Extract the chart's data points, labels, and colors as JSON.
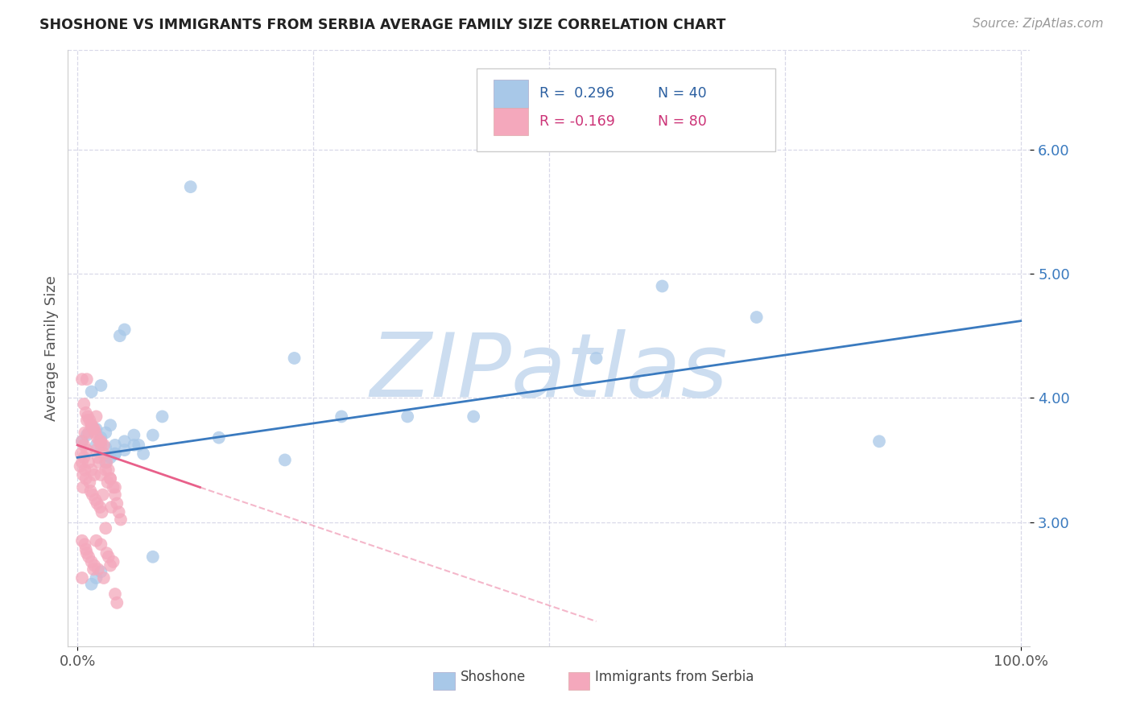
{
  "title": "SHOSHONE VS IMMIGRANTS FROM SERBIA AVERAGE FAMILY SIZE CORRELATION CHART",
  "source": "Source: ZipAtlas.com",
  "ylabel": "Average Family Size",
  "xlim": [
    -0.01,
    1.01
  ],
  "ylim": [
    2.0,
    6.8
  ],
  "yticks": [
    3.0,
    4.0,
    5.0,
    6.0
  ],
  "blue_color": "#a8c8e8",
  "pink_color": "#f4a8bc",
  "blue_line_color": "#3a7abf",
  "pink_line_color": "#e8608a",
  "R_blue": 0.296,
  "N_blue": 40,
  "R_pink": -0.169,
  "N_pink": 80,
  "watermark_text": "ZIPatlas",
  "watermark_color": "#ccddf0",
  "background_color": "#ffffff",
  "grid_color": "#d8d8e8",
  "blue_scatter_x": [
    0.005,
    0.01,
    0.015,
    0.02,
    0.02,
    0.025,
    0.025,
    0.03,
    0.03,
    0.035,
    0.04,
    0.04,
    0.045,
    0.05,
    0.05,
    0.06,
    0.065,
    0.07,
    0.08,
    0.09,
    0.15,
    0.22,
    0.23,
    0.28,
    0.35,
    0.42,
    0.55,
    0.62,
    0.72,
    0.85,
    0.015,
    0.02,
    0.025,
    0.03,
    0.035,
    0.04,
    0.05,
    0.06,
    0.08,
    0.12
  ],
  "blue_scatter_y": [
    3.65,
    3.7,
    4.05,
    3.62,
    3.75,
    3.68,
    4.1,
    3.6,
    3.72,
    3.78,
    3.55,
    3.62,
    4.5,
    4.55,
    3.65,
    3.7,
    3.62,
    3.55,
    3.7,
    3.85,
    3.68,
    3.5,
    4.32,
    3.85,
    3.85,
    3.85,
    4.32,
    4.9,
    4.65,
    3.65,
    2.5,
    2.55,
    2.6,
    3.48,
    3.52,
    3.55,
    3.58,
    3.62,
    2.72,
    5.7
  ],
  "pink_scatter_x": [
    0.003,
    0.004,
    0.005,
    0.005,
    0.005,
    0.005,
    0.006,
    0.006,
    0.007,
    0.007,
    0.008,
    0.008,
    0.008,
    0.009,
    0.009,
    0.01,
    0.01,
    0.01,
    0.01,
    0.012,
    0.012,
    0.012,
    0.013,
    0.014,
    0.015,
    0.015,
    0.015,
    0.016,
    0.017,
    0.018,
    0.018,
    0.018,
    0.019,
    0.02,
    0.02,
    0.02,
    0.021,
    0.022,
    0.022,
    0.023,
    0.024,
    0.025,
    0.025,
    0.025,
    0.026,
    0.027,
    0.028,
    0.028,
    0.03,
    0.03,
    0.031,
    0.032,
    0.033,
    0.035,
    0.035,
    0.036,
    0.038,
    0.04,
    0.04,
    0.042,
    0.005,
    0.007,
    0.009,
    0.011,
    0.013,
    0.015,
    0.017,
    0.019,
    0.021,
    0.023,
    0.025,
    0.028,
    0.031,
    0.033,
    0.035,
    0.038,
    0.04,
    0.042,
    0.044,
    0.046
  ],
  "pink_scatter_y": [
    3.45,
    3.55,
    3.65,
    3.48,
    2.85,
    2.55,
    3.38,
    3.28,
    3.62,
    3.52,
    3.72,
    3.42,
    2.82,
    3.35,
    2.78,
    3.58,
    4.15,
    3.82,
    2.75,
    3.72,
    3.48,
    2.72,
    3.32,
    3.25,
    3.78,
    3.42,
    2.68,
    3.22,
    2.62,
    3.75,
    3.38,
    2.65,
    3.18,
    3.85,
    3.58,
    2.85,
    3.15,
    3.52,
    2.62,
    3.48,
    3.12,
    3.65,
    3.38,
    2.82,
    3.08,
    3.22,
    3.62,
    2.55,
    3.42,
    2.95,
    2.75,
    3.32,
    2.72,
    3.35,
    2.65,
    3.12,
    2.68,
    3.28,
    2.42,
    2.35,
    4.15,
    3.95,
    3.88,
    3.85,
    3.82,
    3.78,
    3.75,
    3.72,
    3.68,
    3.65,
    3.62,
    3.55,
    3.48,
    3.42,
    3.35,
    3.28,
    3.22,
    3.15,
    3.08,
    3.02
  ],
  "blue_line_x0": 0.0,
  "blue_line_x1": 1.0,
  "blue_line_y0": 3.52,
  "blue_line_y1": 4.62,
  "pink_line_solid_x0": 0.0,
  "pink_line_solid_x1": 0.13,
  "pink_line_solid_y0": 3.62,
  "pink_line_solid_y1": 3.28,
  "pink_line_dash_x0": 0.13,
  "pink_line_dash_x1": 0.55,
  "pink_line_dash_y0": 3.28,
  "pink_line_dash_y1": 2.2
}
